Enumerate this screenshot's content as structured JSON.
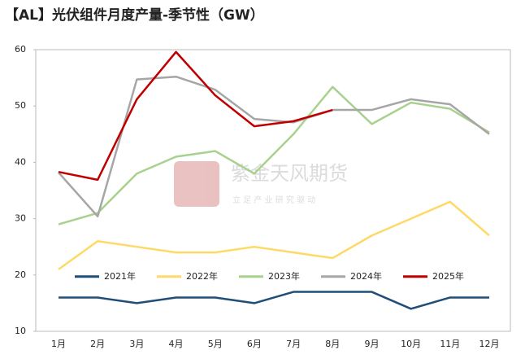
{
  "chart_data": {
    "type": "line",
    "title": "【AL】光伏组件月度产量-季节性（GW）",
    "watermark": {
      "brand": "紫金天风期货",
      "slogan": "立 足 产 业   研 究 驱 动"
    },
    "categories": [
      "1月",
      "2月",
      "3月",
      "4月",
      "5月",
      "6月",
      "7月",
      "8月",
      "9月",
      "10月",
      "11月",
      "12月"
    ],
    "series": [
      {
        "name": "2021年",
        "color": "#1f4e79",
        "values": [
          16,
          16,
          15,
          16,
          16,
          15,
          17,
          17,
          17,
          14,
          16,
          16
        ]
      },
      {
        "name": "2022年",
        "color": "#ffd966",
        "values": [
          21,
          26,
          25,
          24,
          24,
          25,
          24,
          23,
          27,
          30,
          33,
          27
        ]
      },
      {
        "name": "2023年",
        "color": "#a9d18e",
        "values": [
          29,
          31,
          38,
          41,
          42,
          38,
          45,
          53.4,
          46.8,
          50.6,
          49.5,
          45.3
        ]
      },
      {
        "name": "2024年",
        "color": "#a6a6a6",
        "values": [
          38.2,
          30.4,
          54.7,
          55.2,
          52.9,
          47.7,
          47.1,
          49.3,
          49.3,
          51.2,
          50.3,
          45
        ]
      },
      {
        "name": "2025年",
        "color": "#c00000",
        "values": [
          38.3,
          36.9,
          51.2,
          59.6,
          51.9,
          46.4,
          47.3,
          49.3,
          null,
          null,
          null,
          null
        ]
      }
    ],
    "ylim": [
      10,
      60
    ],
    "yticks": [
      10,
      20,
      30,
      40,
      50,
      60
    ],
    "grid": false,
    "legend": "bottom"
  }
}
